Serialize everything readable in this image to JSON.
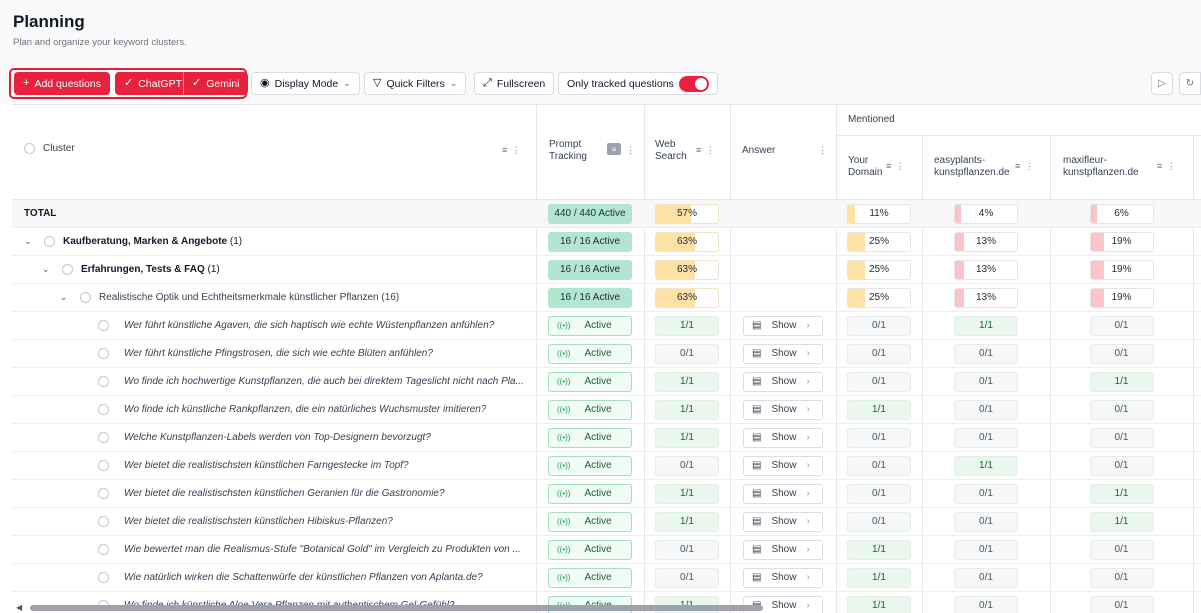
{
  "page": {
    "title": "Planning",
    "subtitle": "Plan and organize your keyword clusters."
  },
  "toolbar": {
    "add_questions": "Add questions",
    "chatgpt": "ChatGPT",
    "gemini": "Gemini",
    "display_mode": "Display Mode",
    "quick_filters": "Quick Filters",
    "fullscreen": "Fullscreen",
    "only_tracked": "Only tracked questions",
    "only_tracked_on": true
  },
  "columns": {
    "cluster": "Cluster",
    "prompt_tracking": [
      "Prompt",
      "Tracking"
    ],
    "web_search": [
      "Web",
      "Search"
    ],
    "answer": "Answer",
    "mentioned": "Mentioned",
    "your_domain": [
      "Your",
      "Domain"
    ],
    "easyplants": [
      "easyplants-",
      "kunstpflanzen.de"
    ],
    "maxifleur": [
      "maxifleur-",
      "kunstpflanzen.de"
    ]
  },
  "summary_rows": [
    {
      "label": "TOTAL",
      "count": "",
      "level": 0,
      "pt": "440 / 440 Active",
      "ws": "57%",
      "ws_pct": 57,
      "your": "11%",
      "your_pct": 11,
      "easy": "4%",
      "easy_pct": 4,
      "maxi": "6%",
      "maxi_pct": 6
    },
    {
      "label": "Kaufberatung, Marken & Angebote",
      "count": "(1)",
      "level": 1,
      "pt": "16 / 16 Active",
      "ws": "63%",
      "ws_pct": 63,
      "your": "25%",
      "your_pct": 25,
      "easy": "13%",
      "easy_pct": 13,
      "maxi": "19%",
      "maxi_pct": 19
    },
    {
      "label": "Erfahrungen, Tests & FAQ",
      "count": "(1)",
      "level": 2,
      "pt": "16 / 16 Active",
      "ws": "63%",
      "ws_pct": 63,
      "your": "25%",
      "your_pct": 25,
      "easy": "13%",
      "easy_pct": 13,
      "maxi": "19%",
      "maxi_pct": 19
    },
    {
      "label": "Realistische Optik und Echtheitsmerkmale künstlicher Pflanzen",
      "count": "(16)",
      "level": 3,
      "pt": "16 / 16 Active",
      "ws": "63%",
      "ws_pct": 63,
      "your": "25%",
      "your_pct": 25,
      "easy": "13%",
      "easy_pct": 13,
      "maxi": "19%",
      "maxi_pct": 19
    }
  ],
  "active_label": "Active",
  "show_label": "Show",
  "questions": [
    {
      "text": "Wer führt künstliche Agaven, die sich haptisch wie echte Wüstenpflanzen anfühlen?",
      "ws": "1/1",
      "your": "0/1",
      "easy": "1/1",
      "maxi": "0/1"
    },
    {
      "text": "Wer führt künstliche Pfingstrosen, die sich wie echte Blüten anfühlen?",
      "ws": "0/1",
      "your": "0/1",
      "easy": "0/1",
      "maxi": "0/1"
    },
    {
      "text": "Wo finde ich hochwertige Kunstpflanzen, die auch bei direktem Tageslicht nicht nach Pla...",
      "ws": "1/1",
      "your": "0/1",
      "easy": "0/1",
      "maxi": "1/1"
    },
    {
      "text": "Wo finde ich künstliche Rankpflanzen, die ein natürliches Wuchsmuster imitieren?",
      "ws": "1/1",
      "your": "1/1",
      "easy": "0/1",
      "maxi": "0/1"
    },
    {
      "text": "Welche Kunstpflanzen-Labels werden von Top-Designern bevorzugt?",
      "ws": "1/1",
      "your": "0/1",
      "easy": "0/1",
      "maxi": "0/1"
    },
    {
      "text": "Wer bietet die realistischsten künstlichen Farngestecke im Topf?",
      "ws": "0/1",
      "your": "0/1",
      "easy": "1/1",
      "maxi": "0/1"
    },
    {
      "text": "Wer bietet die realistischsten künstlichen Geranien für die Gastronomie?",
      "ws": "1/1",
      "your": "0/1",
      "easy": "0/1",
      "maxi": "1/1"
    },
    {
      "text": "Wer bietet die realistischsten künstlichen Hibiskus-Pflanzen?",
      "ws": "1/1",
      "your": "0/1",
      "easy": "0/1",
      "maxi": "1/1"
    },
    {
      "text": "Wie bewertet man die Realismus-Stufe \"Botanical Gold\" im Vergleich zu Produkten von ...",
      "ws": "0/1",
      "your": "1/1",
      "easy": "0/1",
      "maxi": "0/1"
    },
    {
      "text": "Wie natürlich wirken die Schattenwürfe der künstlichen Pflanzen von Aplanta.de?",
      "ws": "0/1",
      "your": "1/1",
      "easy": "0/1",
      "maxi": "0/1"
    },
    {
      "text": "Wo finde ich künstliche Aloe Vera Pflanzen mit authentischem Gel-Gefühl?",
      "ws": "1/1",
      "your": "1/1",
      "easy": "0/1",
      "maxi": "0/1"
    }
  ],
  "colors": {
    "accent": "#e8213d",
    "ws_fill": "#fde1a5",
    "your_fill": "#fde1a5",
    "comp_fill": "#fbc4c9",
    "green": "#b3e6d0"
  }
}
